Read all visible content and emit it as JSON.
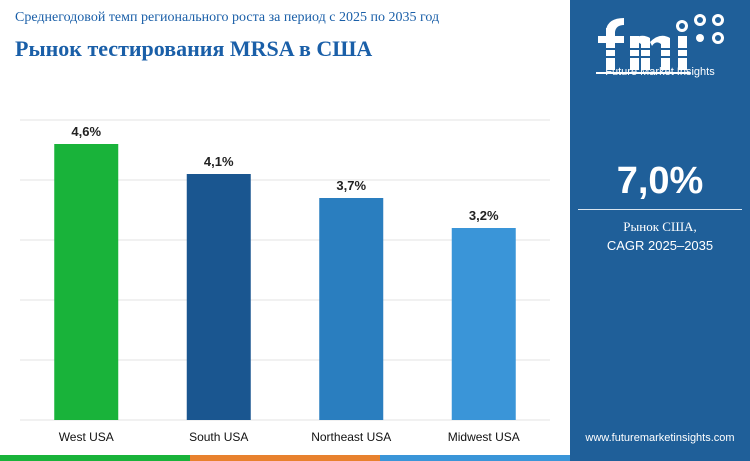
{
  "header": {
    "subtitle": "Среднегодовой темп регионального роста за период с 2025 по 2035 год",
    "title": "Рынок тестирования MRSA в США"
  },
  "chart_data": {
    "type": "bar",
    "categories": [
      "West USA",
      "South USA",
      "Northeast USA",
      "Midwest USA"
    ],
    "values": [
      4.6,
      4.1,
      3.7,
      3.2
    ],
    "value_labels": [
      "4,6%",
      "4,1%",
      "3,7%",
      "3,2%"
    ],
    "bar_colors": [
      "#19b33a",
      "#1a5690",
      "#2a7ebf",
      "#3a95d8"
    ],
    "title": "Рынок тестирования MRSA в США",
    "subtitle": "Среднегодовой темп регионального роста за период с 2025 по 2035 год",
    "xlabel": "",
    "ylabel": "",
    "ylim": [
      0,
      5
    ],
    "grid": true,
    "legend": "none"
  },
  "sidebar": {
    "logo_text": "Future Market Insights",
    "cagr_value": "7,0%",
    "cagr_label_1": "Рынок США,",
    "cagr_label_2": "CAGR 2025–2035",
    "website": "www.futuremarketinsights.com",
    "background_color": "#1f5f99"
  },
  "colors": {
    "title": "#1a5fa8",
    "accent_green": "#19b33a",
    "accent_orange": "#e8812e",
    "panel_blue": "#1f5f99"
  }
}
